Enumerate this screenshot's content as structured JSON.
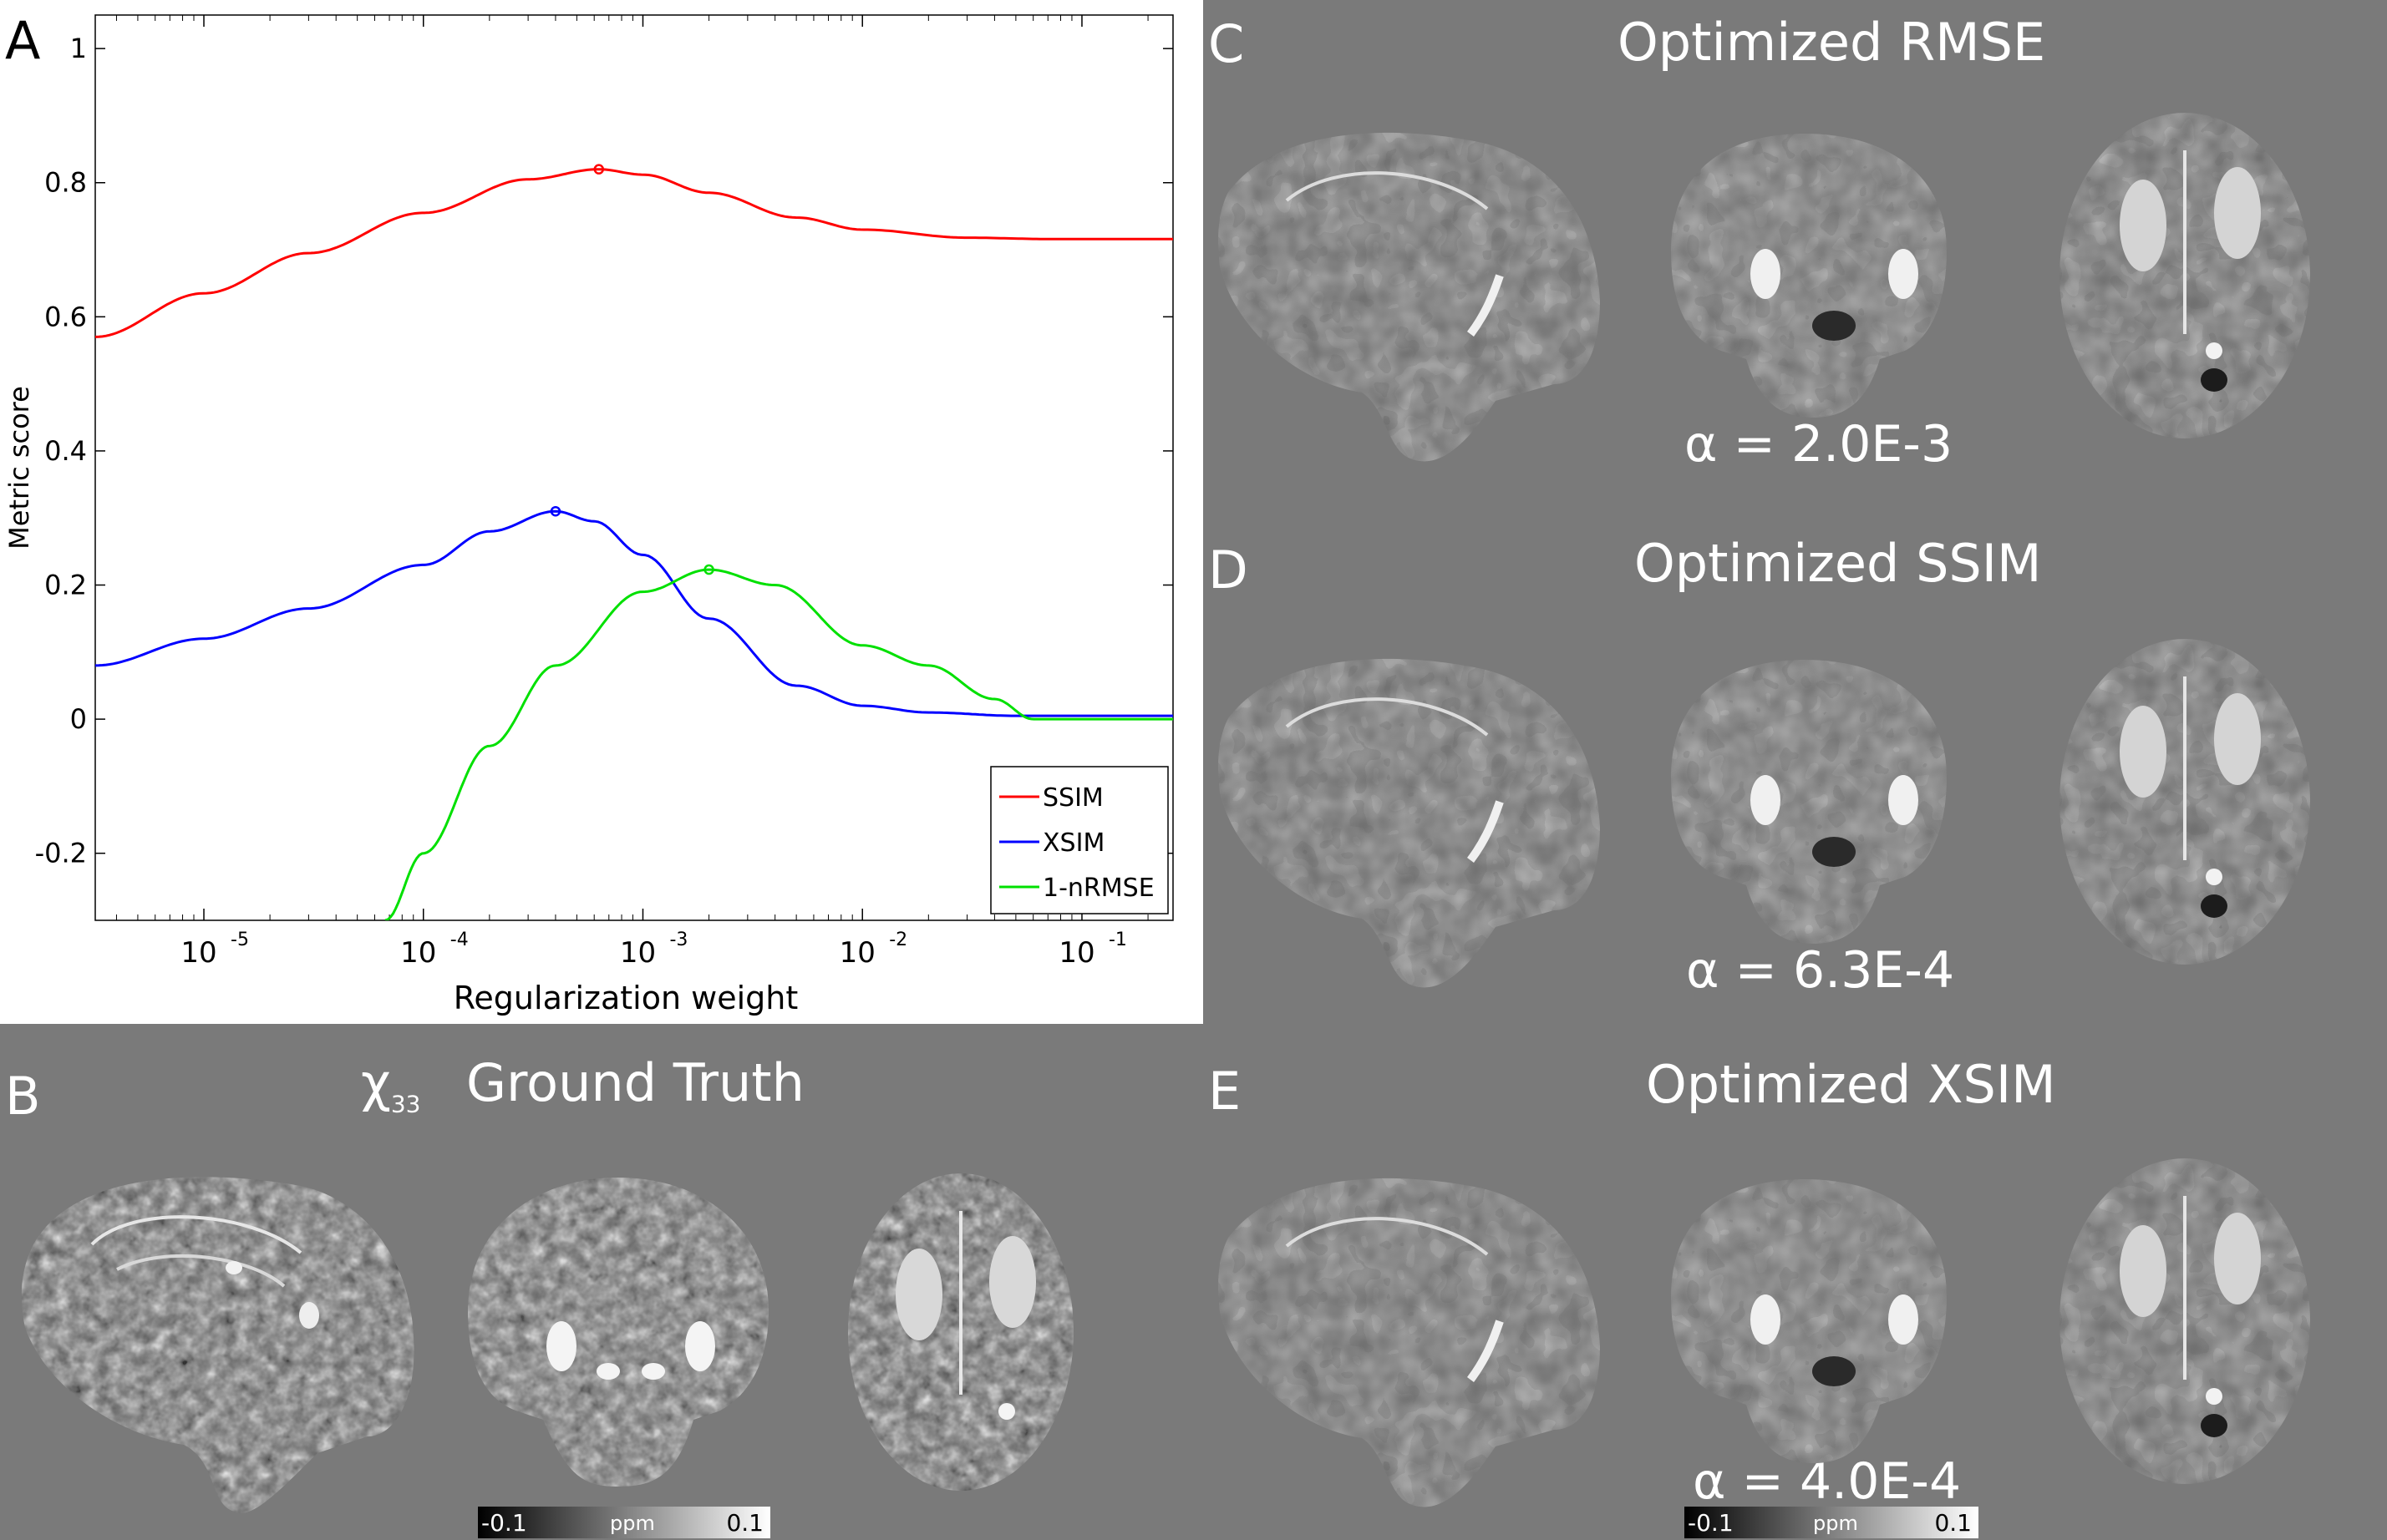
{
  "panels": {
    "a": "A",
    "b": "B",
    "c": "C",
    "d": "D",
    "e": "E"
  },
  "chart_data": {
    "type": "line",
    "xscale": "log",
    "xlim": [
      3.2e-06,
      0.26
    ],
    "ylim": [
      -0.3,
      1.05
    ],
    "xlabel": "Regularization weight",
    "ylabel": "Metric score",
    "yticks": [
      -0.2,
      0,
      0.2,
      0.4,
      0.6,
      0.8,
      1
    ],
    "ytick_labels": [
      "-0.2",
      "0",
      "0.2",
      "0.4",
      "0.6",
      "0.8",
      "1"
    ],
    "xticks": [
      {
        "value": 1e-05,
        "base": "10",
        "exp": "-5"
      },
      {
        "value": 0.0001,
        "base": "10",
        "exp": "-4"
      },
      {
        "value": 0.001,
        "base": "10",
        "exp": "-3"
      },
      {
        "value": 0.01,
        "base": "10",
        "exp": "-2"
      },
      {
        "value": 0.1,
        "base": "10",
        "exp": "-1"
      }
    ],
    "legend_position": "bottom-right",
    "series": [
      {
        "name": "SSIM",
        "color": "#ff0000",
        "x": [
          3.2e-06,
          1e-05,
          3e-05,
          0.0001,
          0.0003,
          0.00063,
          0.001,
          0.002,
          0.005,
          0.01,
          0.03,
          0.07,
          0.26
        ],
        "y": [
          0.57,
          0.635,
          0.695,
          0.755,
          0.805,
          0.82,
          0.812,
          0.785,
          0.748,
          0.73,
          0.718,
          0.716,
          0.716
        ],
        "marker": {
          "x": 0.00063,
          "y": 0.82
        }
      },
      {
        "name": "XSIM",
        "color": "#0000ff",
        "x": [
          3.2e-06,
          1e-05,
          3e-05,
          0.0001,
          0.0002,
          0.0004,
          0.0006,
          0.001,
          0.002,
          0.005,
          0.01,
          0.02,
          0.05,
          0.1,
          0.26
        ],
        "y": [
          0.08,
          0.12,
          0.165,
          0.23,
          0.28,
          0.31,
          0.295,
          0.245,
          0.15,
          0.05,
          0.02,
          0.01,
          0.005,
          0.005,
          0.005
        ],
        "marker": {
          "x": 0.0004,
          "y": 0.31
        }
      },
      {
        "name": "1-nRMSE",
        "color": "#00e000",
        "x": [
          6.7e-05,
          0.0001,
          0.0002,
          0.0004,
          0.001,
          0.002,
          0.004,
          0.01,
          0.02,
          0.04,
          0.06,
          0.1,
          0.26
        ],
        "y": [
          -0.3,
          -0.2,
          -0.04,
          0.08,
          0.19,
          0.223,
          0.2,
          0.11,
          0.08,
          0.03,
          0.0,
          0.0,
          0.0
        ],
        "marker": {
          "x": 0.002,
          "y": 0.223
        }
      }
    ]
  },
  "titles": {
    "ground_truth_symbol": "χ",
    "ground_truth_sub": "33",
    "ground_truth": "Ground Truth",
    "rmse": "Optimized RMSE",
    "ssim": "Optimized SSIM",
    "xsim": "Optimized XSIM"
  },
  "alphas": {
    "rmse": "α = 2.0E-3",
    "ssim": "α = 6.3E-4",
    "xsim": "α = 4.0E-4"
  },
  "colorbar": {
    "min": "-0.1",
    "unit": "ppm",
    "max": "0.1"
  }
}
